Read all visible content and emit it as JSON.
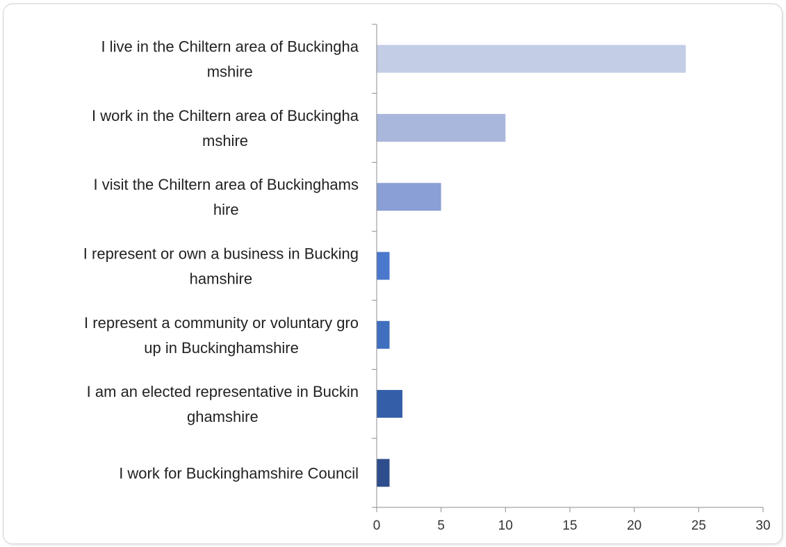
{
  "chart_data": {
    "type": "bar",
    "orientation": "horizontal",
    "title": "",
    "xlabel": "",
    "ylabel": "",
    "xlim": [
      0,
      30
    ],
    "x_ticks": [
      0,
      5,
      10,
      15,
      20,
      25,
      30
    ],
    "x_tick_labels": [
      "0",
      "5",
      "10",
      "15",
      "20",
      "25",
      "30"
    ],
    "grid": false,
    "legend": "none",
    "categories": [
      {
        "lines": [
          "I live in the Chiltern area of Buckingha",
          "mshire"
        ]
      },
      {
        "lines": [
          "I work in the Chiltern area of Buckingha",
          "mshire"
        ]
      },
      {
        "lines": [
          "I visit the Chiltern area of Buckinghams",
          "hire"
        ]
      },
      {
        "lines": [
          "I represent or own a business in Bucking",
          "hamshire"
        ]
      },
      {
        "lines": [
          "I represent a community or voluntary gro",
          "up in Buckinghamshire"
        ]
      },
      {
        "lines": [
          "I am an elected representative in Buckin",
          "ghamshire"
        ]
      },
      {
        "lines": [
          "I work for Buckinghamshire Council"
        ]
      }
    ],
    "values": [
      24,
      10,
      5,
      1,
      1,
      2,
      1
    ],
    "colors": [
      "#c3cde6",
      "#a9b7dc",
      "#8a9fd5",
      "#4a78cc",
      "#3f6fbe",
      "#345fa8",
      "#2e4d8c"
    ]
  }
}
